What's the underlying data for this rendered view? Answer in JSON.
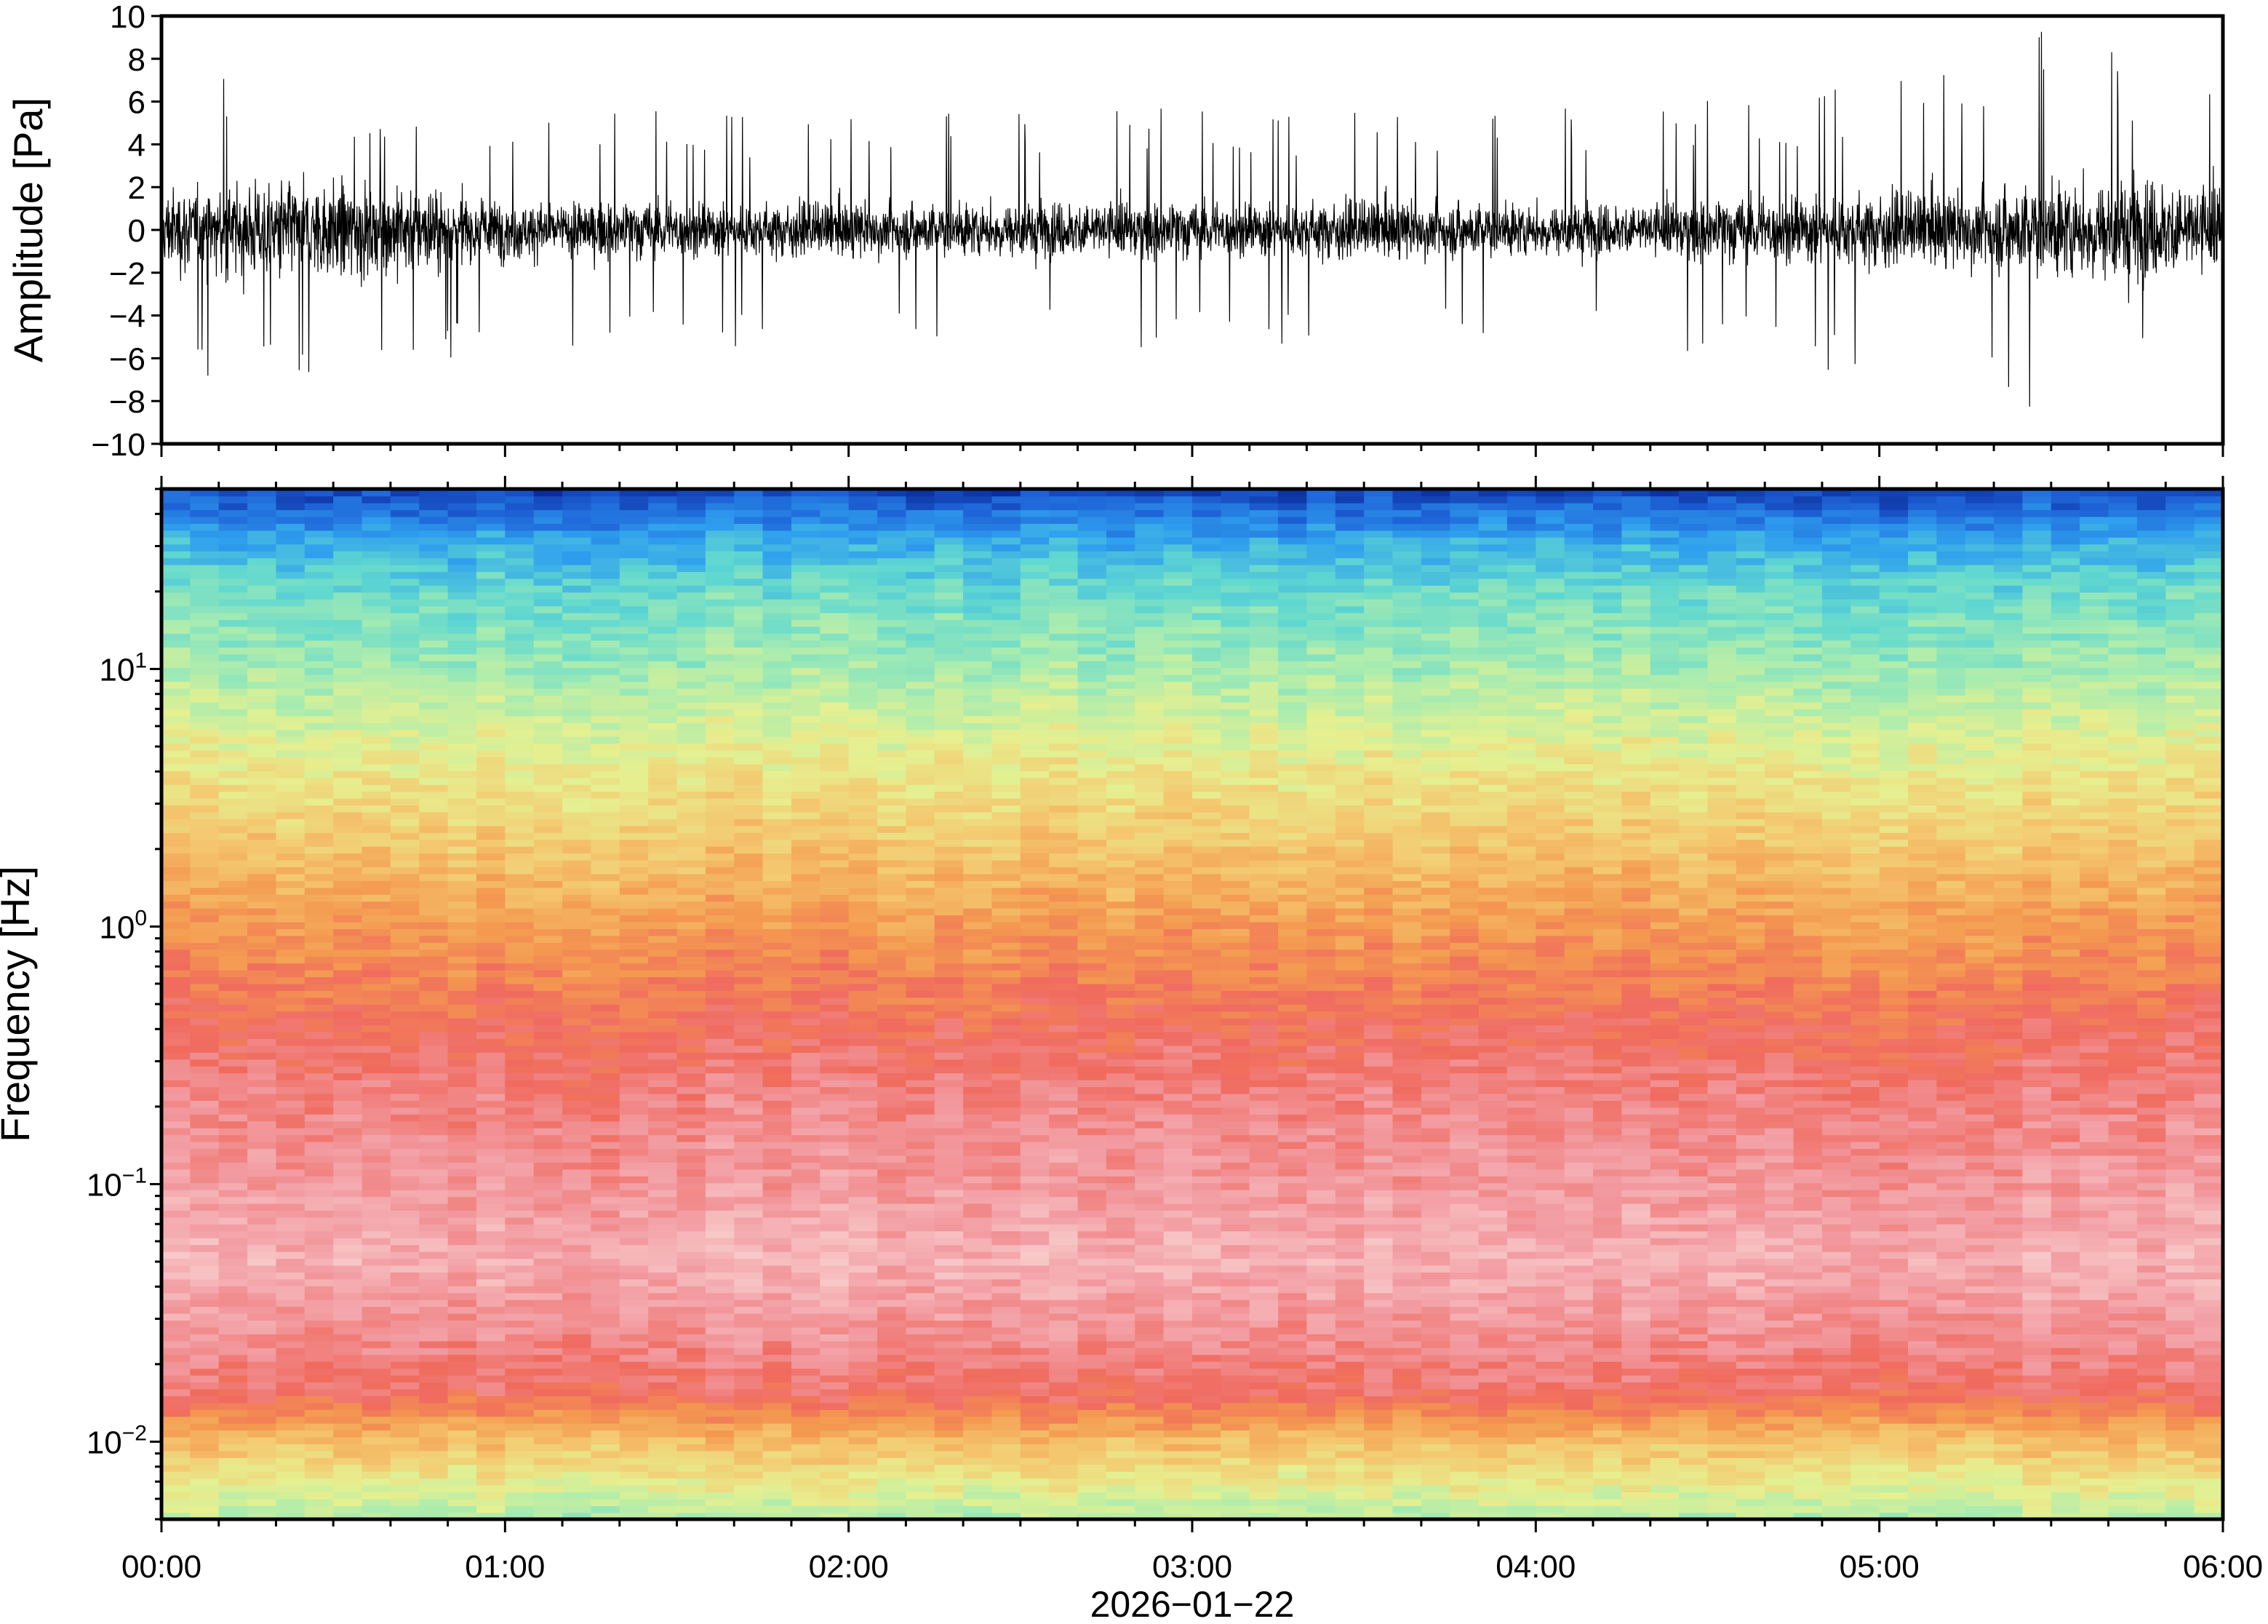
{
  "chart_data": [
    {
      "type": "line",
      "panel": "waveform",
      "ylabel": "Amplitude [Pa]",
      "ylim": [
        -10,
        10
      ],
      "yticks": [
        -10,
        -8,
        -6,
        -4,
        -2,
        0,
        2,
        4,
        6,
        8,
        10
      ],
      "ytick_labels": [
        "−10",
        "−8",
        "−6",
        "−4",
        "−2",
        "0",
        "2",
        "4",
        "6",
        "8",
        "10"
      ],
      "xlim": [
        "00:00",
        "06:00"
      ],
      "series_color": "#000000",
      "envelope": {
        "t_hours": [
          0.0,
          0.25,
          0.5,
          0.75,
          1.0,
          1.25,
          1.5,
          1.75,
          2.0,
          2.25,
          2.5,
          2.75,
          3.0,
          3.25,
          3.5,
          3.75,
          4.0,
          4.25,
          4.5,
          4.75,
          5.0,
          5.25,
          5.5,
          5.75,
          6.0
        ],
        "typical_amplitude": [
          2.8,
          3.2,
          3.3,
          3.0,
          2.0,
          1.9,
          2.0,
          1.8,
          1.9,
          1.8,
          1.9,
          2.0,
          1.9,
          1.9,
          2.0,
          1.9,
          1.8,
          1.8,
          2.1,
          2.4,
          2.5,
          2.6,
          3.3,
          3.6,
          3.0
        ],
        "peak_amplitude": [
          7.0,
          7.2,
          6.5,
          6.3,
          5.5,
          5.8,
          6.0,
          5.5,
          6.0,
          5.8,
          5.6,
          6.3,
          6.0,
          5.5,
          6.5,
          5.5,
          5.8,
          6.0,
          6.5,
          6.0,
          8.0,
          8.5,
          10.0,
          8.0,
          7.0
        ]
      }
    },
    {
      "type": "heatmap",
      "panel": "spectrogram",
      "ylabel": "Frequency [Hz]",
      "yscale": "log",
      "ylim": [
        0.005,
        50
      ],
      "yticks": [
        0.01,
        0.1,
        1,
        10
      ],
      "ytick_labels": [
        {
          "base": "10",
          "exp": "−2"
        },
        {
          "base": "10",
          "exp": "−1"
        },
        {
          "base": "10",
          "exp": "0"
        },
        {
          "base": "10",
          "exp": "1"
        }
      ],
      "xlabel": "2026−01−22",
      "xlim": [
        "00:00",
        "06:00"
      ],
      "xticks": [
        "00:00",
        "01:00",
        "02:00",
        "03:00",
        "04:00",
        "05:00",
        "06:00"
      ],
      "colormap": [
        "#0a2a9a",
        "#1e64d8",
        "#2fa0ee",
        "#60d8d0",
        "#a8ecb0",
        "#e6f090",
        "#f4c870",
        "#f49a50",
        "#f06a5e",
        "#f29aa0",
        "#f8c8c8"
      ],
      "level_profile": {
        "log10_freq": [
          -2.3,
          -2.0,
          -1.8,
          -1.5,
          -1.3,
          -1.0,
          -0.7,
          -0.4,
          0.0,
          0.4,
          0.7,
          1.0,
          1.3,
          1.5,
          1.7
        ],
        "relative_level": [
          0.42,
          0.62,
          0.82,
          0.9,
          0.95,
          0.9,
          0.86,
          0.8,
          0.7,
          0.58,
          0.5,
          0.4,
          0.32,
          0.22,
          0.05
        ]
      }
    }
  ]
}
